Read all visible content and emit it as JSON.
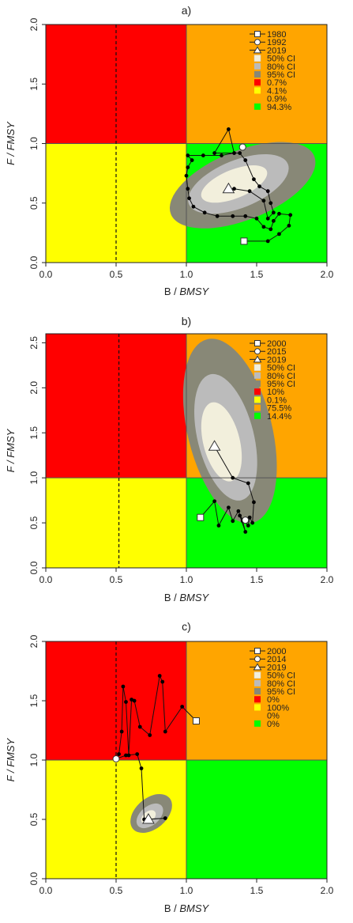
{
  "chart_data": [
    {
      "type": "scatter",
      "title": "a)",
      "xlabel_main": "B / ",
      "xlabel_sub": "BMSY",
      "ylabel_main": "F / ",
      "ylabel_sub": "FMSY",
      "xlim": [
        0,
        2
      ],
      "ylim": [
        0,
        2
      ],
      "xticks": [
        "0.0",
        "0.5",
        "1.0",
        "1.5",
        "2.0"
      ],
      "xtick_values": [
        0,
        0.5,
        1,
        1.5,
        2
      ],
      "yticks": [
        "0.0",
        "0.5",
        "1.0",
        "1.5",
        "2.0"
      ],
      "ytick_values": [
        0,
        0.5,
        1,
        1.5,
        2
      ],
      "quadrant_colors": {
        "top_left": "#ff0000",
        "top_right": "#ffa500",
        "bottom_left": "#ffff00",
        "bottom_right": "#00ff00"
      },
      "dashed_x": 0.5,
      "trajectory": [
        [
          1.41,
          0.18
        ],
        [
          1.58,
          0.18
        ],
        [
          1.66,
          0.24
        ],
        [
          1.73,
          0.31
        ],
        [
          1.74,
          0.4
        ],
        [
          1.66,
          0.41
        ],
        [
          1.62,
          0.35
        ],
        [
          1.6,
          0.28
        ],
        [
          1.55,
          0.3
        ],
        [
          1.5,
          0.37
        ],
        [
          1.42,
          0.39
        ],
        [
          1.33,
          0.39
        ],
        [
          1.22,
          0.39
        ],
        [
          1.13,
          0.42
        ],
        [
          1.05,
          0.47
        ],
        [
          1.02,
          0.54
        ],
        [
          1.01,
          0.62
        ],
        [
          1.0,
          0.73
        ],
        [
          1.01,
          0.8
        ],
        [
          1.04,
          0.86
        ],
        [
          1.01,
          0.9
        ],
        [
          1.12,
          0.9
        ],
        [
          1.25,
          0.9
        ],
        [
          1.34,
          0.92
        ],
        [
          1.3,
          1.12
        ],
        [
          1.2,
          0.92
        ],
        [
          1.38,
          0.92
        ],
        [
          1.42,
          0.86
        ],
        [
          1.48,
          0.7
        ],
        [
          1.52,
          0.64
        ],
        [
          1.58,
          0.6
        ],
        [
          1.6,
          0.5
        ],
        [
          1.62,
          0.42
        ],
        [
          1.58,
          0.37
        ],
        [
          1.55,
          0.52
        ],
        [
          1.45,
          0.6
        ],
        [
          1.34,
          0.62
        ],
        [
          1.3,
          0.62
        ]
      ],
      "start_point": [
        1.41,
        0.18
      ],
      "mid_point": [
        1.4,
        0.97
      ],
      "end_point": [
        1.3,
        0.62
      ],
      "ci": [
        {
          "cx": 1.4,
          "cy": 0.65,
          "rx": 0.55,
          "ry": 0.29,
          "rot": -22,
          "color": "#888877"
        },
        {
          "cx": 1.37,
          "cy": 0.66,
          "rx": 0.38,
          "ry": 0.2,
          "rot": -22,
          "color": "#bbbbbb"
        },
        {
          "cx": 1.34,
          "cy": 0.66,
          "rx": 0.25,
          "ry": 0.12,
          "rot": -22,
          "color": "#f2efdc"
        }
      ],
      "legend": {
        "position": "top-right",
        "entries": [
          {
            "label": "1980",
            "kind": "square-line"
          },
          {
            "label": "1992",
            "kind": "circle-line"
          },
          {
            "label": "2019",
            "kind": "triangle-line"
          },
          {
            "label": "50% CI",
            "kind": "fill",
            "color": "#f2efdc"
          },
          {
            "label": "80% CI",
            "kind": "fill",
            "color": "#bbbbbb"
          },
          {
            "label": "95% CI",
            "kind": "fill",
            "color": "#888877"
          },
          {
            "label": "0.7%",
            "kind": "fill",
            "color": "#ff0000"
          },
          {
            "label": "4.1%",
            "kind": "fill",
            "color": "#ffff00"
          },
          {
            "label": "0.9%",
            "kind": "fill",
            "color": "#ffa500"
          },
          {
            "label": "94.3%",
            "kind": "fill",
            "color": "#00ff00"
          }
        ]
      }
    },
    {
      "type": "scatter",
      "title": "b)",
      "xlabel_main": "B / ",
      "xlabel_sub": "BMSY",
      "ylabel_main": "F / ",
      "ylabel_sub": "FMSY",
      "xlim": [
        0,
        2
      ],
      "ylim": [
        0,
        2.6
      ],
      "xticks": [
        "0.0",
        "0.5",
        "1.0",
        "1.5",
        "2.0"
      ],
      "xtick_values": [
        0,
        0.5,
        1,
        1.5,
        2
      ],
      "yticks": [
        "0.0",
        "0.5",
        "1.0",
        "1.5",
        "2.0",
        "2.5"
      ],
      "ytick_values": [
        0,
        0.5,
        1,
        1.5,
        2,
        2.5
      ],
      "quadrant_colors": {
        "top_left": "#ff0000",
        "top_right": "#ffa500",
        "bottom_left": "#ffff00",
        "bottom_right": "#00ff00"
      },
      "dashed_x": 0.52,
      "trajectory": [
        [
          1.1,
          0.56
        ],
        [
          1.2,
          0.74
        ],
        [
          1.23,
          0.47
        ],
        [
          1.3,
          0.67
        ],
        [
          1.33,
          0.52
        ],
        [
          1.37,
          0.63
        ],
        [
          1.4,
          0.52
        ],
        [
          1.42,
          0.4
        ],
        [
          1.38,
          0.58
        ],
        [
          1.44,
          0.47
        ],
        [
          1.45,
          0.56
        ],
        [
          1.47,
          0.5
        ],
        [
          1.48,
          0.73
        ],
        [
          1.44,
          0.94
        ],
        [
          1.33,
          1.0
        ],
        [
          1.2,
          1.35
        ]
      ],
      "start_point": [
        1.1,
        0.56
      ],
      "mid_point": [
        1.42,
        0.53
      ],
      "end_point": [
        1.2,
        1.35
      ],
      "ci": [
        {
          "cx": 1.31,
          "cy": 1.52,
          "rx": 0.3,
          "ry": 1.05,
          "rot": -14,
          "color": "#888877"
        },
        {
          "cx": 1.28,
          "cy": 1.45,
          "rx": 0.2,
          "ry": 0.72,
          "rot": -14,
          "color": "#bbbbbb"
        },
        {
          "cx": 1.25,
          "cy": 1.4,
          "rx": 0.13,
          "ry": 0.45,
          "rot": -14,
          "color": "#f2efdc"
        }
      ],
      "legend": {
        "position": "top-right",
        "entries": [
          {
            "label": "2000",
            "kind": "square-line"
          },
          {
            "label": "2015",
            "kind": "circle-line"
          },
          {
            "label": "2019",
            "kind": "triangle-line"
          },
          {
            "label": "50% CI",
            "kind": "fill",
            "color": "#f2efdc"
          },
          {
            "label": "80% CI",
            "kind": "fill",
            "color": "#bbbbbb"
          },
          {
            "label": "95% CI",
            "kind": "fill",
            "color": "#888877"
          },
          {
            "label": "10%",
            "kind": "fill",
            "color": "#ff0000"
          },
          {
            "label": "0.1%",
            "kind": "fill",
            "color": "#ffff00"
          },
          {
            "label": "75.5%",
            "kind": "fill",
            "color": "#ffa500"
          },
          {
            "label": "14.4%",
            "kind": "fill",
            "color": "#00ff00"
          }
        ]
      }
    },
    {
      "type": "scatter",
      "title": "c)",
      "xlabel_main": "B / ",
      "xlabel_sub": "BMSY",
      "ylabel_main": "F / ",
      "ylabel_sub": "FMSY",
      "xlim": [
        0,
        2
      ],
      "ylim": [
        0,
        2
      ],
      "xticks": [
        "0.0",
        "0.5",
        "1.0",
        "1.5",
        "2.0"
      ],
      "xtick_values": [
        0,
        0.5,
        1,
        1.5,
        2
      ],
      "yticks": [
        "0.0",
        "0.5",
        "1.0",
        "1.5",
        "2.0"
      ],
      "ytick_values": [
        0,
        0.5,
        1,
        1.5,
        2
      ],
      "quadrant_colors": {
        "top_left": "#ff0000",
        "top_right": "#ffa500",
        "bottom_left": "#ffff00",
        "bottom_right": "#00ff00"
      },
      "dashed_x": 0.5,
      "trajectory": [
        [
          1.07,
          1.33
        ],
        [
          0.97,
          1.45
        ],
        [
          0.85,
          1.24
        ],
        [
          0.83,
          1.66
        ],
        [
          0.81,
          1.71
        ],
        [
          0.74,
          1.21
        ],
        [
          0.67,
          1.28
        ],
        [
          0.63,
          1.5
        ],
        [
          0.61,
          1.51
        ],
        [
          0.59,
          1.04
        ],
        [
          0.57,
          1.49
        ],
        [
          0.55,
          1.62
        ],
        [
          0.54,
          1.24
        ],
        [
          0.52,
          1.05
        ],
        [
          0.5,
          1.01
        ],
        [
          0.57,
          1.04
        ],
        [
          0.65,
          1.05
        ],
        [
          0.68,
          0.93
        ],
        [
          0.7,
          0.5
        ],
        [
          0.85,
          0.51
        ],
        [
          0.73,
          0.5
        ]
      ],
      "start_point": [
        1.07,
        1.33
      ],
      "mid_point": [
        0.5,
        1.01
      ],
      "end_point": [
        0.73,
        0.5
      ],
      "ci": [
        {
          "cx": 0.75,
          "cy": 0.55,
          "rx": 0.17,
          "ry": 0.13,
          "rot": -40,
          "color": "#888877"
        },
        {
          "cx": 0.74,
          "cy": 0.53,
          "rx": 0.11,
          "ry": 0.08,
          "rot": -40,
          "color": "#bbbbbb"
        },
        {
          "cx": 0.73,
          "cy": 0.52,
          "rx": 0.06,
          "ry": 0.045,
          "rot": -40,
          "color": "#f2efdc"
        }
      ],
      "legend": {
        "position": "top-right",
        "entries": [
          {
            "label": "2000",
            "kind": "square-line"
          },
          {
            "label": "2014",
            "kind": "circle-line"
          },
          {
            "label": "2019",
            "kind": "triangle-line"
          },
          {
            "label": "50% CI",
            "kind": "fill",
            "color": "#f2efdc"
          },
          {
            "label": "80% CI",
            "kind": "fill",
            "color": "#bbbbbb"
          },
          {
            "label": "95% CI",
            "kind": "fill",
            "color": "#888877"
          },
          {
            "label": "0%",
            "kind": "fill",
            "color": "#ff0000"
          },
          {
            "label": "100%",
            "kind": "fill",
            "color": "#ffff00"
          },
          {
            "label": "0%",
            "kind": "fill",
            "color": "#ffa500"
          },
          {
            "label": "0%",
            "kind": "fill",
            "color": "#00ff00"
          }
        ]
      }
    }
  ]
}
